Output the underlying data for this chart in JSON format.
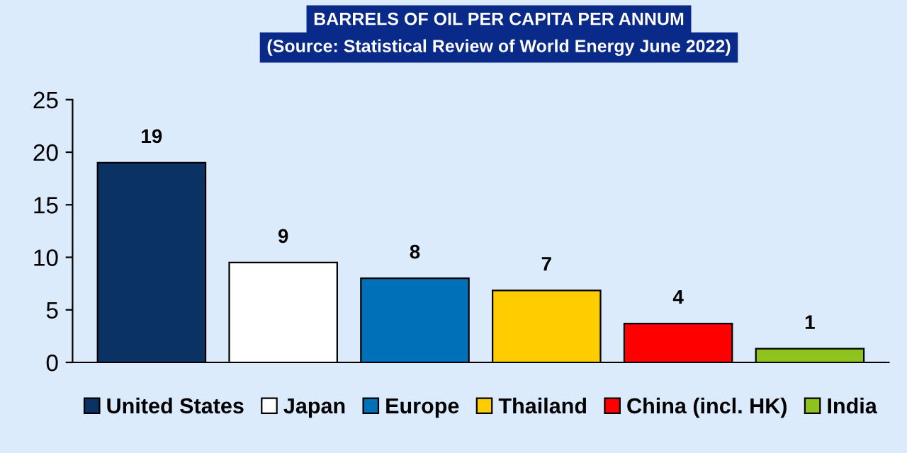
{
  "chart_data": {
    "type": "bar",
    "title": "BARRELS OF OIL PER CAPITA PER ANNUM",
    "subtitle": "(Source: Statistical Review of World Energy June 2022)",
    "categories": [
      null,
      null,
      null,
      null,
      null,
      null
    ],
    "stacked": true,
    "series": [
      {
        "name": "United States",
        "color": "#0a3262",
        "values": [
          19.0,
          null,
          null,
          null,
          null,
          null
        ],
        "value_labels": [
          "19",
          null,
          null,
          null,
          null,
          null
        ]
      },
      {
        "name": "Japan",
        "color": "#ffffff",
        "values": [
          null,
          9.5,
          null,
          null,
          null,
          null
        ],
        "value_labels": [
          null,
          "9",
          null,
          null,
          null,
          null
        ]
      },
      {
        "name": "Europe",
        "color": "#0070b8",
        "values": [
          null,
          null,
          8.0,
          null,
          null,
          null
        ],
        "value_labels": [
          null,
          null,
          "8",
          null,
          null,
          null
        ]
      },
      {
        "name": "Thailand",
        "color": "#ffcc00",
        "values": [
          null,
          null,
          null,
          6.85,
          null,
          null
        ],
        "value_labels": [
          null,
          null,
          null,
          "7",
          null,
          null
        ]
      },
      {
        "name": "China (incl. HK)",
        "color": "#ff0000",
        "values": [
          null,
          null,
          null,
          null,
          3.7,
          null
        ],
        "value_labels": [
          null,
          null,
          null,
          null,
          "4",
          null
        ]
      },
      {
        "name": "India",
        "color": "#8ec21f",
        "values": [
          null,
          null,
          null,
          null,
          null,
          1.3
        ],
        "value_labels": [
          null,
          null,
          null,
          null,
          null,
          "1"
        ]
      }
    ],
    "ylim": [
      0,
      25
    ],
    "yticks": [
      0,
      5,
      10,
      15,
      20,
      25
    ],
    "legend": "bottom"
  }
}
